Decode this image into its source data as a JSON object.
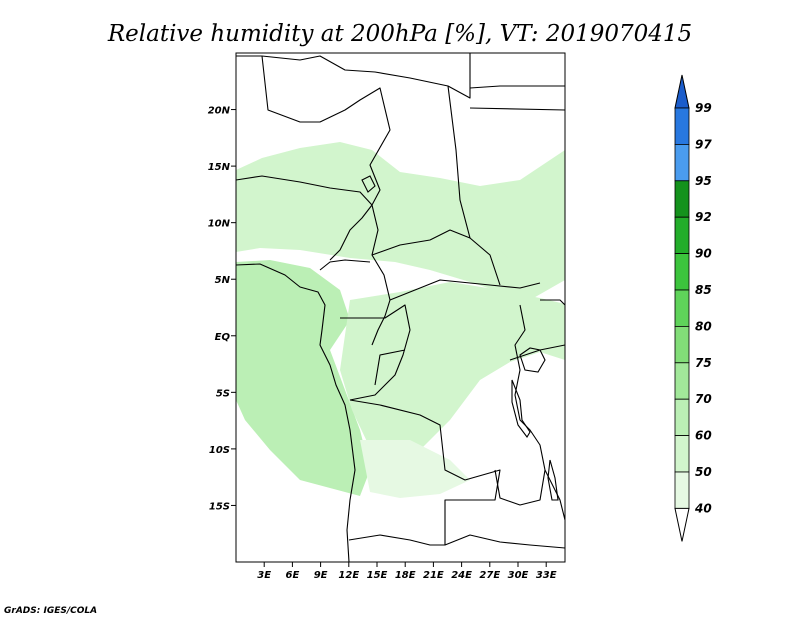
{
  "title": "Relative humidity at 200hPa [%], VT: 2019070415",
  "credit": "GrADS: IGES/COLA",
  "map": {
    "lat_labels": [
      "20N",
      "15N",
      "10N",
      "5N",
      "EQ",
      "5S",
      "10S",
      "15S"
    ],
    "lon_labels": [
      "3E",
      "6E",
      "9E",
      "12E",
      "15E",
      "18E",
      "21E",
      "24E",
      "27E",
      "30E",
      "33E"
    ],
    "lon_range": [
      0,
      35
    ],
    "lat_range": [
      -20,
      25
    ]
  },
  "colorbar": {
    "levels": [
      "40",
      "50",
      "60",
      "70",
      "75",
      "80",
      "85",
      "90",
      "92",
      "95",
      "97",
      "99"
    ],
    "colors": [
      "#ffffff",
      "#e6f9e3",
      "#d2f5cd",
      "#bbefb5",
      "#a2e89a",
      "#82dd78",
      "#5fd35a",
      "#3cc43d",
      "#23ad2a",
      "#14921c",
      "#4a9cef",
      "#2878e0",
      "#1b5dcb"
    ]
  },
  "fields": [
    {
      "name": "humidity-region-sahel",
      "level": "50"
    },
    {
      "name": "humidity-region-west-coast",
      "level": "60"
    },
    {
      "name": "humidity-region-central",
      "level": "50"
    },
    {
      "name": "humidity-region-sudan",
      "level": "50"
    },
    {
      "name": "humidity-region-south",
      "level": "40"
    }
  ]
}
